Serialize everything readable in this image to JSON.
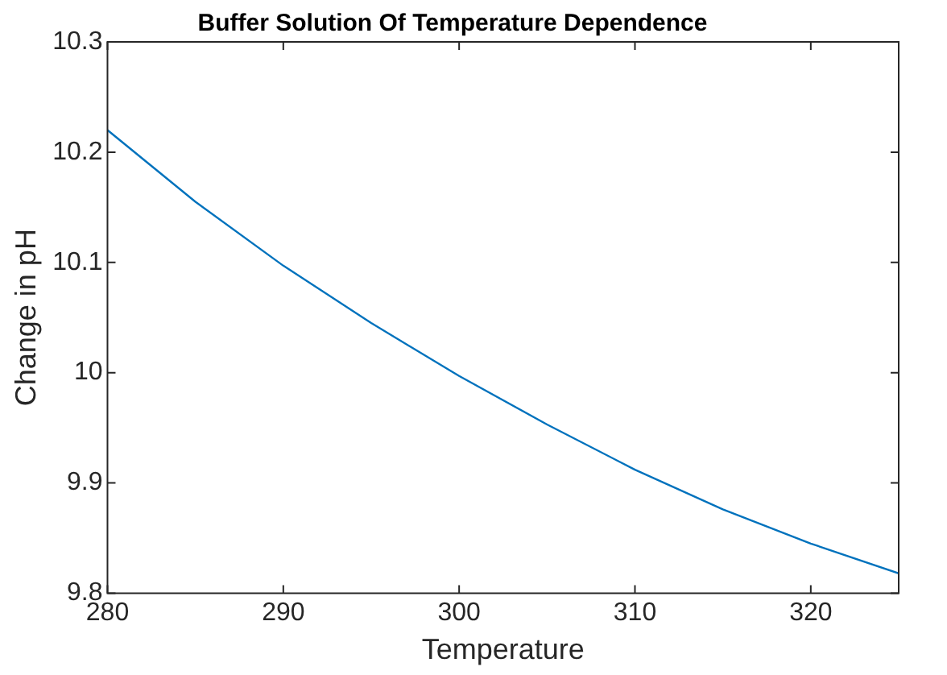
{
  "chart_data": {
    "type": "line",
    "title": "Buffer Solution Of Temperature Dependence",
    "xlabel": "Temperature",
    "ylabel": "Change in pH",
    "x": [
      280,
      285,
      290,
      295,
      300,
      305,
      310,
      315,
      320,
      325
    ],
    "series": [
      {
        "color": "#0072bd",
        "values": [
          10.22,
          10.155,
          10.097,
          10.045,
          9.997,
          9.953,
          9.912,
          9.876,
          9.845,
          9.818
        ]
      }
    ],
    "xlim": [
      280,
      325
    ],
    "xticks": [
      280,
      290,
      300,
      310,
      320
    ],
    "ylim": [
      9.8,
      10.3
    ],
    "yticks": [
      9.8,
      9.9,
      10,
      10.1,
      10.2,
      10.3
    ],
    "grid": false,
    "legend": false,
    "marker": "none",
    "line_style": "solid"
  }
}
